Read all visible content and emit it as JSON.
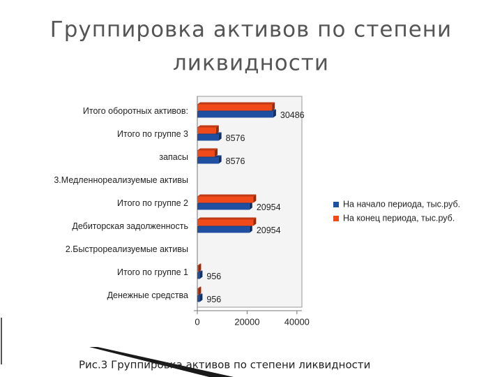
{
  "slide": {
    "title": [
      "Группировка активов по степени",
      "ликвидности"
    ],
    "caption": "Рис.3 Группировка активов по степени ликвидности"
  },
  "chart_data": {
    "type": "hbar",
    "categories": [
      "Итого оборотных активов:",
      "Итого по группе 3",
      "запасы",
      "3.Медленнореализуемые активы",
      "Итого по группе 2",
      "Дебиторская задолженность",
      "2.Быстрореализуемые активы",
      "Итого по группе 1",
      "Денежные средства"
    ],
    "series": [
      {
        "name": "На начало периода, тыс.руб.",
        "color": "#1f4fa0",
        "values": [
          30486,
          8576,
          8576,
          null,
          20954,
          20954,
          null,
          956,
          956
        ]
      },
      {
        "name": "На конец периода, тыс.руб.",
        "color": "#f04a1a",
        "values": [
          30000,
          7500,
          7000,
          null,
          22500,
          22500,
          null,
          400,
          400
        ]
      }
    ],
    "xlim": [
      0,
      42000
    ],
    "xticks": [
      0,
      20000,
      40000
    ],
    "legend": "right"
  }
}
